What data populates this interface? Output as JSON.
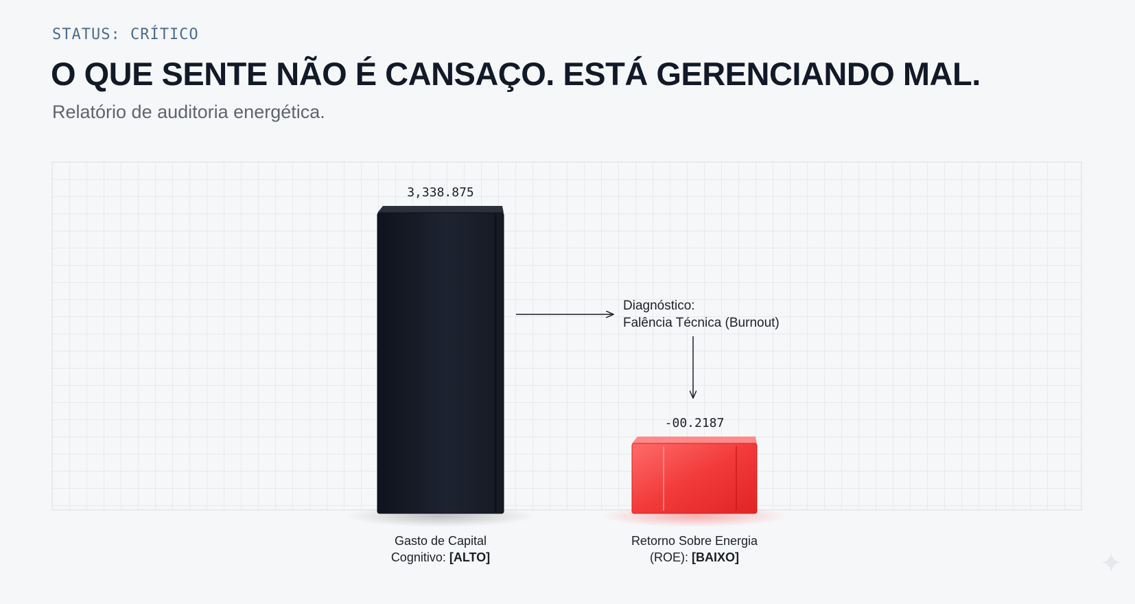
{
  "header": {
    "status": "STATUS: CRÍTICO",
    "title": "O QUE SENTE NÃO É CANSAÇO. ESTÁ GERENCIANDO MAL.",
    "subtitle": "Relatório de auditoria energética."
  },
  "chart_data": {
    "type": "bar",
    "categories": [
      {
        "line1": "Gasto de Capital",
        "line2_prefix": "Cognitivo: ",
        "line2_bold": "[ALTO]"
      },
      {
        "line1": "Retorno Sobre Energia",
        "line2_prefix": "(ROE): ",
        "line2_bold": "[BAIXO]"
      }
    ],
    "values": [
      3338.875,
      -0.2187
    ],
    "value_labels": [
      "3,338.875",
      "-00.2187"
    ],
    "bar_colors": [
      "#1a1f2a",
      "#ee3b3b"
    ],
    "annotation": {
      "line1": "Diagnóstico:",
      "line2": "Falência Técnica (Burnout)"
    },
    "grid": true,
    "title": "",
    "xlabel": "",
    "ylabel": ""
  },
  "decor": {
    "sparkle_icon": "✦"
  }
}
